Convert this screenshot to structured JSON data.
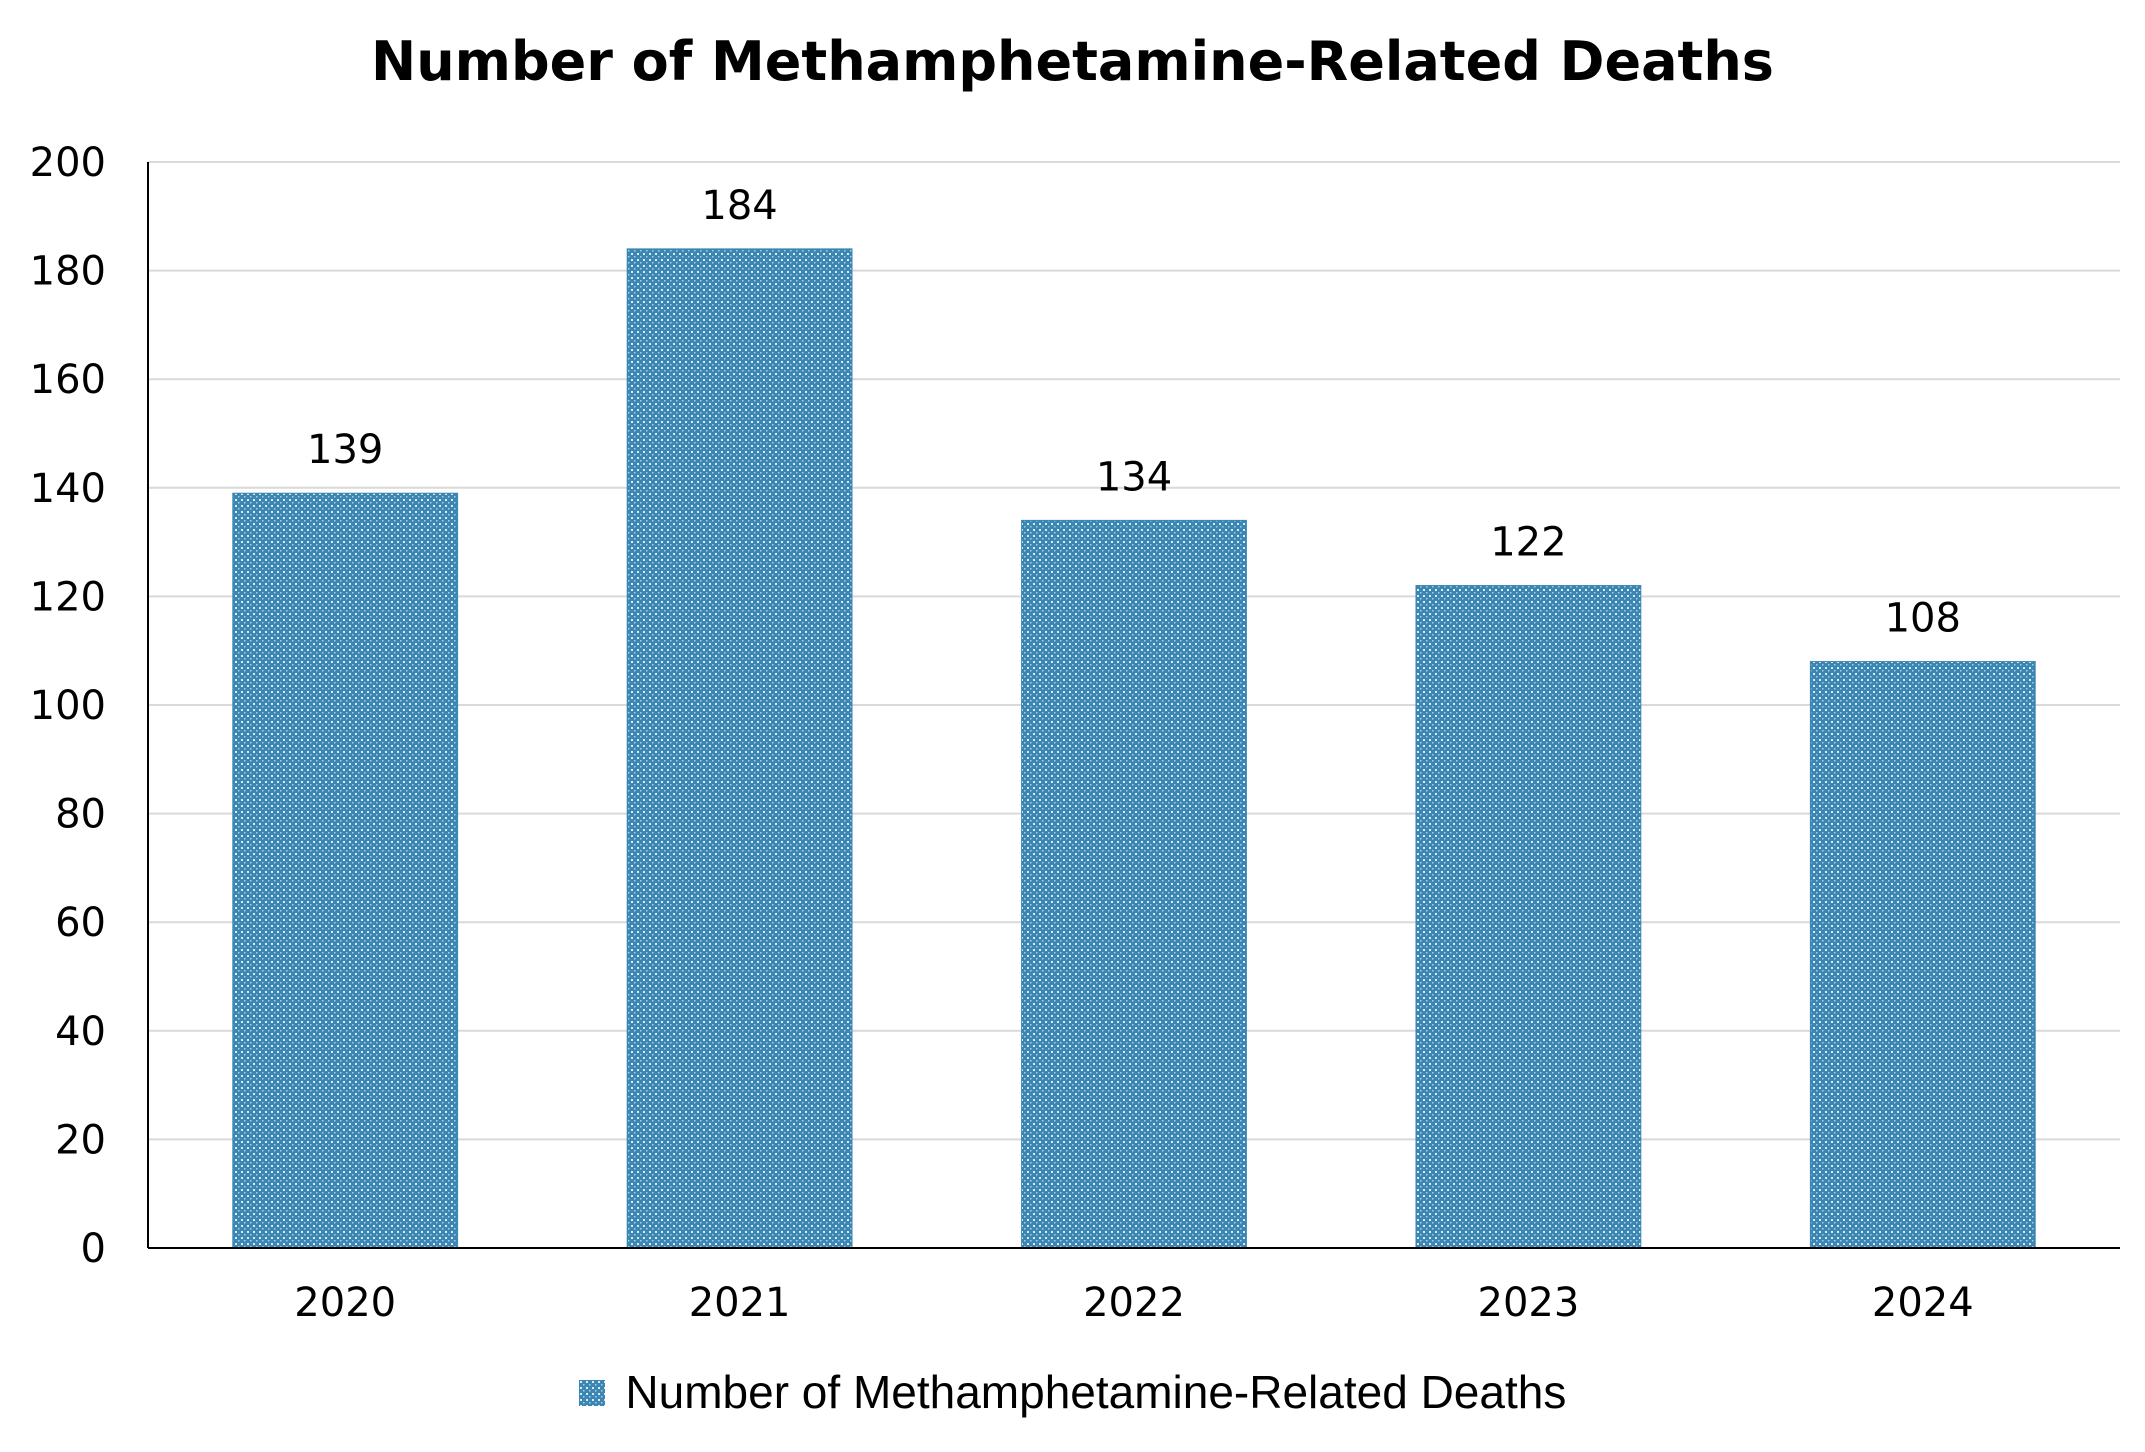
{
  "chart_data": {
    "type": "bar",
    "title": "Number of Methamphetamine-Related Deaths",
    "categories": [
      "2020",
      "2021",
      "2022",
      "2023",
      "2024"
    ],
    "series": [
      {
        "name": "Number of Methamphetamine-Related Deaths",
        "values": [
          139,
          184,
          134,
          122,
          108
        ]
      }
    ],
    "data_labels": [
      "139",
      "184",
      "134",
      "122",
      "108"
    ],
    "ylim": [
      0,
      200
    ],
    "yticks": [
      "0",
      "20",
      "40",
      "60",
      "80",
      "100",
      "120",
      "140",
      "160",
      "180",
      "200"
    ],
    "xlabel": "",
    "ylabel": "",
    "grid": true,
    "legend_position": "bottom",
    "bar_color": "#3b86b3"
  }
}
